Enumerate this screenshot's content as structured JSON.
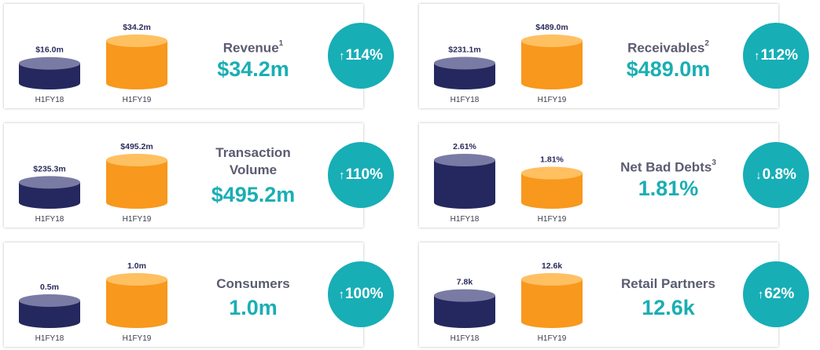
{
  "colors": {
    "prior_top": "#7a7ba4",
    "prior_body": "#24285e",
    "current_top": "#ffc062",
    "current_body": "#f8981d",
    "accent": "#17aeb6"
  },
  "chart_data": [
    {
      "type": "bar",
      "metric": "Revenue",
      "footnote": "1",
      "headline_value": "$34.2m",
      "change": "114%",
      "change_direction": "up",
      "categories": [
        "H1FY18",
        "H1FY19"
      ],
      "values": [
        16.0,
        34.2
      ],
      "value_labels": [
        "$16.0m",
        "$34.2m"
      ]
    },
    {
      "type": "bar",
      "metric": "Receivables",
      "footnote": "2",
      "headline_value": "$489.0m",
      "change": "112%",
      "change_direction": "up",
      "categories": [
        "H1FY18",
        "H1FY19"
      ],
      "values": [
        231.1,
        489.0
      ],
      "value_labels": [
        "$231.1m",
        "$489.0m"
      ]
    },
    {
      "type": "bar",
      "metric": "Transaction Volume",
      "footnote": "",
      "headline_value": "$495.2m",
      "change": "110%",
      "change_direction": "up",
      "categories": [
        "H1FY18",
        "H1FY19"
      ],
      "values": [
        235.3,
        495.2
      ],
      "value_labels": [
        "$235.3m",
        "$495.2m"
      ]
    },
    {
      "type": "bar",
      "metric": "Net Bad Debts",
      "footnote": "3",
      "headline_value": "1.81%",
      "change": "0.8%",
      "change_direction": "down",
      "categories": [
        "H1FY18",
        "H1FY19"
      ],
      "values": [
        2.61,
        1.81
      ],
      "value_labels": [
        "2.61%",
        "1.81%"
      ]
    },
    {
      "type": "bar",
      "metric": "Consumers",
      "footnote": "",
      "headline_value": "1.0m",
      "change": "100%",
      "change_direction": "up",
      "categories": [
        "H1FY18",
        "H1FY19"
      ],
      "values": [
        0.5,
        1.0
      ],
      "value_labels": [
        "0.5m",
        "1.0m"
      ]
    },
    {
      "type": "bar",
      "metric": "Retail Partners",
      "footnote": "",
      "headline_value": "12.6k",
      "change": "62%",
      "change_direction": "up",
      "categories": [
        "H1FY18",
        "H1FY19"
      ],
      "values": [
        7.8,
        12.6
      ],
      "value_labels": [
        "7.8k",
        "12.6k"
      ]
    }
  ]
}
